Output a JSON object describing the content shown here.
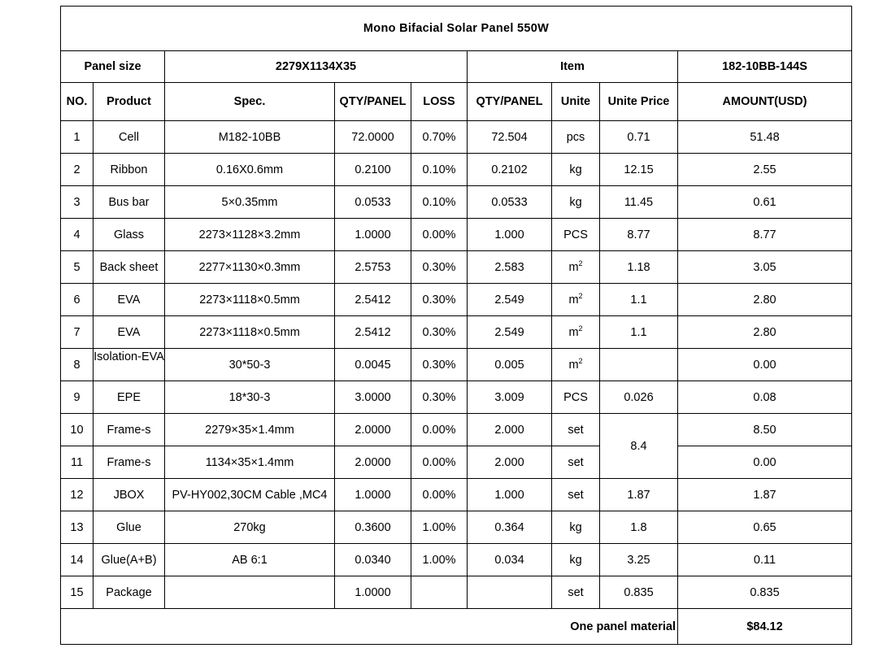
{
  "title": "Mono Bifacial Solar Panel 550W",
  "panel_size": {
    "label": "Panel size",
    "value": "2279X1134X35"
  },
  "item": {
    "label": "Item",
    "value": "182-10BB-144S"
  },
  "headers": [
    "NO.",
    "Product",
    "Spec.",
    "QTY/PANEL",
    "LOSS",
    "QTY/PANEL",
    "Unite",
    "Unite Price",
    "AMOUNT(USD)"
  ],
  "rows": [
    {
      "no": "1",
      "product": "Cell",
      "spec": "M182-10BB",
      "qty": "72.0000",
      "loss": "0.70%",
      "qty2": "72.504",
      "unit": "pcs",
      "price": "0.71",
      "amount": "51.48"
    },
    {
      "no": "2",
      "product": "Ribbon",
      "spec": "0.16X0.6mm",
      "qty": "0.2100",
      "loss": "0.10%",
      "qty2": "0.2102",
      "unit": "kg",
      "price": "12.15",
      "amount": "2.55"
    },
    {
      "no": "3",
      "product": "Bus bar",
      "spec": "5×0.35mm",
      "qty": "0.0533",
      "loss": "0.10%",
      "qty2": "0.0533",
      "unit": "kg",
      "price": "11.45",
      "amount": "0.61"
    },
    {
      "no": "4",
      "product": "Glass",
      "spec": "2273×1128×3.2mm",
      "qty": "1.0000",
      "loss": "0.00%",
      "qty2": "1.000",
      "unit": "PCS",
      "price": "8.77",
      "amount": "8.77"
    },
    {
      "no": "5",
      "product": "Back sheet",
      "spec": "2277×1130×0.3mm",
      "qty": "2.5753",
      "loss": "0.30%",
      "qty2": "2.583",
      "unit": "m",
      "unit_sup": "2",
      "price": "1.18",
      "amount": "3.05"
    },
    {
      "no": "6",
      "product": "EVA",
      "spec": "2273×1118×0.5mm",
      "qty": "2.5412",
      "loss": "0.30%",
      "qty2": "2.549",
      "unit": "m",
      "unit_sup": "2",
      "price": "1.1",
      "amount": "2.80"
    },
    {
      "no": "7",
      "product": "EVA",
      "spec": "2273×1118×0.5mm",
      "qty": "2.5412",
      "loss": "0.30%",
      "qty2": "2.549",
      "unit": "m",
      "unit_sup": "2",
      "price": "1.1",
      "amount": "2.80"
    },
    {
      "no": "8",
      "product": "Isolation-EVA",
      "spec": "30*50-3",
      "qty": "0.0045",
      "loss": "0.30%",
      "qty2": "0.005",
      "unit": "m",
      "unit_sup": "2",
      "price": "",
      "amount": "0.00"
    },
    {
      "no": "9",
      "product": "EPE",
      "spec": "18*30-3",
      "qty": "3.0000",
      "loss": "0.30%",
      "qty2": "3.009",
      "unit": "PCS",
      "price": "0.026",
      "amount": "0.08"
    },
    {
      "no": "10",
      "product": "Frame-s",
      "spec": "2279×35×1.4mm",
      "qty": "2.0000",
      "loss": "0.00%",
      "qty2": "2.000",
      "unit": "set",
      "price": "8.4",
      "amount": "8.50"
    },
    {
      "no": "11",
      "product": "Frame-s",
      "spec": "1134×35×1.4mm",
      "qty": "2.0000",
      "loss": "0.00%",
      "qty2": "2.000",
      "unit": "set",
      "price": "",
      "amount": "0.00"
    },
    {
      "no": "12",
      "product": "JBOX",
      "spec": "PV-HY002,30CM Cable ,MC4",
      "qty": "1.0000",
      "loss": "0.00%",
      "qty2": "1.000",
      "unit": "set",
      "price": "1.87",
      "amount": "1.87"
    },
    {
      "no": "13",
      "product": "Glue",
      "spec": "270kg",
      "qty": "0.3600",
      "loss": "1.00%",
      "qty2": "0.364",
      "unit": "kg",
      "price": "1.8",
      "amount": "0.65"
    },
    {
      "no": "14",
      "product": "Glue(A+B)",
      "spec": "AB 6:1",
      "qty": "0.0340",
      "loss": "1.00%",
      "qty2": "0.034",
      "unit": "kg",
      "price": "3.25",
      "amount": "0.11"
    },
    {
      "no": "15",
      "product": "Package",
      "spec": "",
      "qty": "1.0000",
      "loss": "",
      "qty2": "",
      "unit": "set",
      "price": "0.835",
      "amount": "0.835"
    }
  ],
  "total": {
    "label": "One panel material",
    "value": "$84.12"
  }
}
